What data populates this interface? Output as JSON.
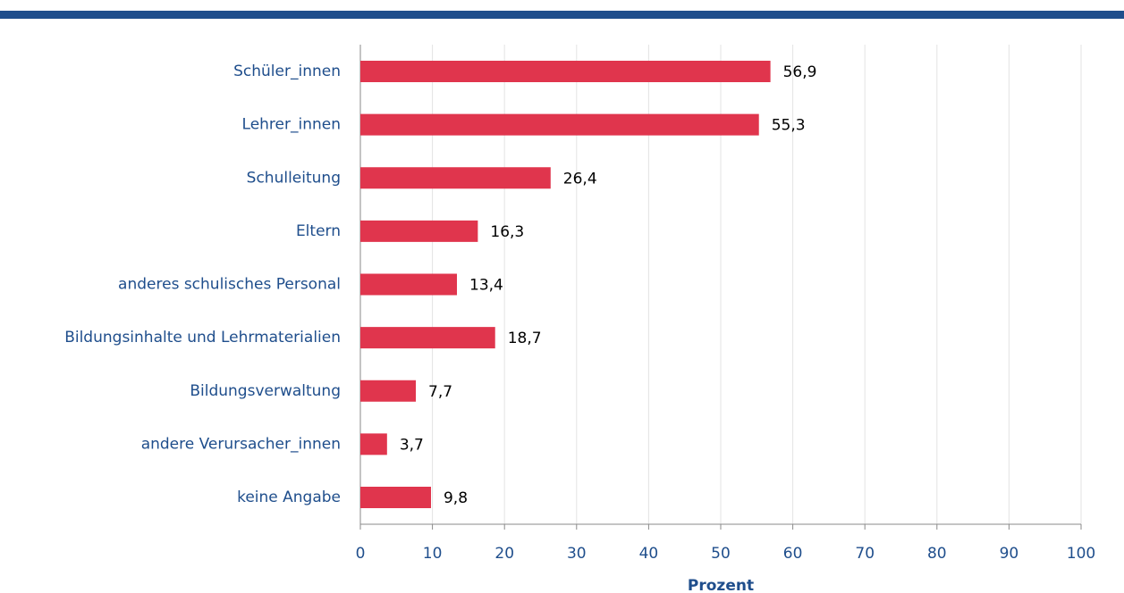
{
  "chart_data": {
    "type": "bar",
    "orientation": "horizontal",
    "categories": [
      "Schüler_innen",
      "Lehrer_innen",
      "Schulleitung",
      "Eltern",
      "anderes schulisches Personal",
      "Bildungsinhalte und Lehrmaterialien",
      "Bildungsverwaltung",
      "andere Verursacher_innen",
      "keine Angabe"
    ],
    "values": [
      56.9,
      55.3,
      26.4,
      16.3,
      13.4,
      18.7,
      7.7,
      3.7,
      9.8
    ],
    "value_labels": [
      "56,9",
      "55,3",
      "26,4",
      "16,3",
      "13,4",
      "18,7",
      "7,7",
      "3,7",
      "9,8"
    ],
    "color": "#e0354d",
    "xlabel": "Prozent",
    "xlim": [
      0,
      100
    ],
    "xticks": [
      0,
      10,
      20,
      30,
      40,
      50,
      60,
      70,
      80,
      90,
      100
    ],
    "grid": true
  }
}
